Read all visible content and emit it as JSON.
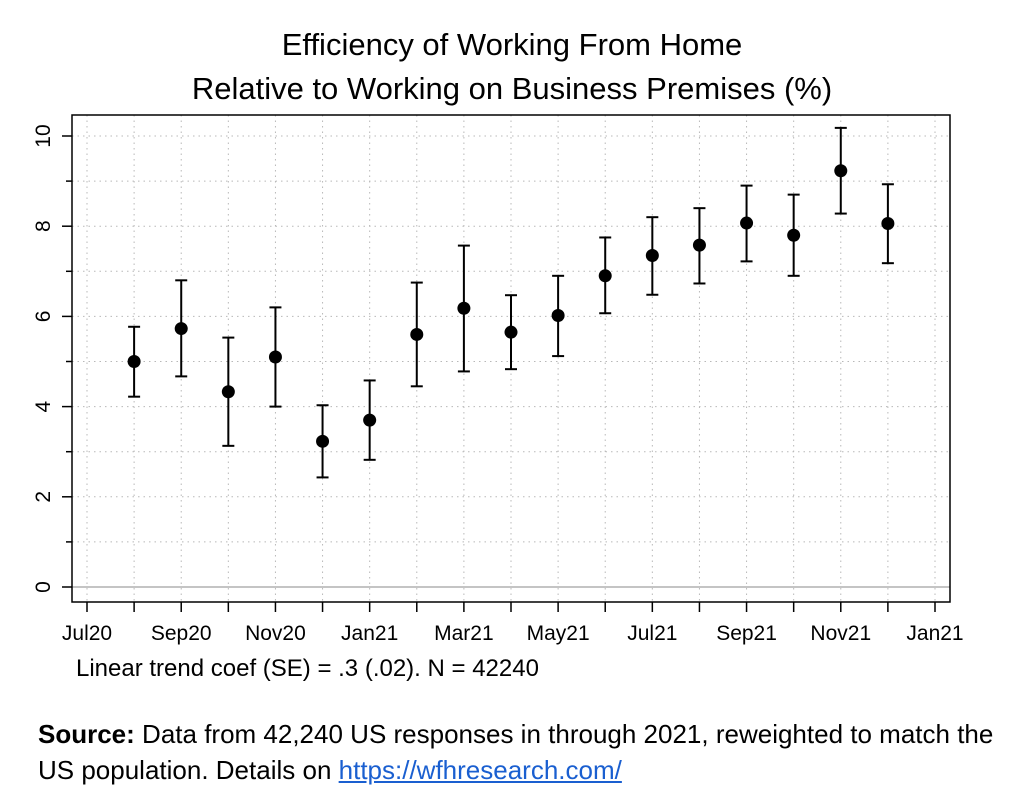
{
  "chart_data": {
    "type": "scatter",
    "title": "Efficiency of Working From Home",
    "subtitle": "Relative to Working on Business Premises (%)",
    "x_ticks": [
      "Jul20",
      "Sep20",
      "Nov20",
      "Jan21",
      "Mar21",
      "May21",
      "Jul21",
      "Sep21",
      "Nov21",
      "Jan21"
    ],
    "y_ticks": [
      0,
      2,
      4,
      6,
      8,
      10
    ],
    "ylim": [
      0,
      10.5
    ],
    "grid": true,
    "note": "Linear trend coef (SE) = .3 (.02). N = 42240",
    "series": [
      {
        "x": [
          "Aug20",
          "Sep20",
          "Oct20",
          "Nov20",
          "Dec20",
          "Jan21",
          "Feb21",
          "Mar21",
          "Apr21",
          "May21",
          "Jun21",
          "Jul21",
          "Aug21",
          "Sep21",
          "Oct21",
          "Nov21",
          "Dec21"
        ],
        "values": [
          5.0,
          5.73,
          4.33,
          5.1,
          3.23,
          3.7,
          5.6,
          6.18,
          5.65,
          6.02,
          6.9,
          7.35,
          7.58,
          8.07,
          7.8,
          9.23,
          8.06
        ],
        "ci_low": [
          4.22,
          4.67,
          3.13,
          4.0,
          2.43,
          2.82,
          4.45,
          4.78,
          4.83,
          5.12,
          6.07,
          6.48,
          6.73,
          7.22,
          6.9,
          8.28,
          7.18
        ],
        "ci_high": [
          5.77,
          6.8,
          5.53,
          6.2,
          4.03,
          4.58,
          6.75,
          7.57,
          6.47,
          6.9,
          7.75,
          8.2,
          8.4,
          8.9,
          8.7,
          10.18,
          8.93
        ]
      }
    ]
  },
  "source": {
    "label": "Source:",
    "text": "Data from 42,240 US responses in through 2021, reweighted to match the US population. Details on",
    "link": "https://wfhresearch.com/"
  }
}
